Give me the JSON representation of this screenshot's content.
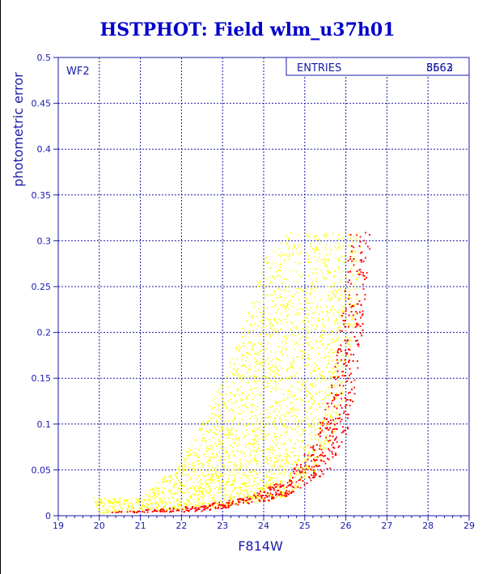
{
  "title": "HSTPHOT: Field wlm_u37h01",
  "colors": {
    "axis": "#1a1aa8",
    "grid": "#1a1aa8",
    "title": "#0000cc",
    "series_all": "#ffff00",
    "series_good": "#ff0000"
  },
  "chart_data": {
    "type": "scatter",
    "title": "HSTPHOT: Field wlm_u37h01",
    "xlabel": "F814W",
    "ylabel": "photometric error",
    "xlim": [
      19,
      29
    ],
    "ylim": [
      0,
      0.5
    ],
    "x_ticks": [
      "19",
      "20",
      "21",
      "22",
      "23",
      "24",
      "25",
      "26",
      "27",
      "28",
      "29"
    ],
    "y_ticks": [
      "0",
      "0.05",
      "0.1",
      "0.15",
      "0.2",
      "0.25",
      "0.3",
      "0.35",
      "0.4",
      "0.45",
      "0.5"
    ],
    "grid": true,
    "panel_label": "WF2",
    "stats_box": {
      "label": "ENTRIES",
      "values": [
        "8662",
        "5563"
      ]
    },
    "series": [
      {
        "color": "#ffff00",
        "envelope": [
          [
            19.8,
            0.02
          ],
          [
            21,
            0.02
          ],
          [
            22,
            0.06
          ],
          [
            23,
            0.15
          ],
          [
            24,
            0.28
          ],
          [
            24.5,
            0.31
          ],
          [
            26.4,
            0.31
          ],
          [
            26.2,
            0.21
          ],
          [
            25.8,
            0.1
          ],
          [
            25.3,
            0.05
          ],
          [
            24.5,
            0.02
          ],
          [
            23,
            0.01
          ],
          [
            20,
            0.003
          ]
        ]
      },
      {
        "color": "#ff0000",
        "envelope": [
          [
            20.1,
            0.004
          ],
          [
            22,
            0.01
          ],
          [
            23.5,
            0.02
          ],
          [
            24.5,
            0.04
          ],
          [
            25.2,
            0.08
          ],
          [
            25.6,
            0.14
          ],
          [
            25.9,
            0.22
          ],
          [
            26.1,
            0.31
          ],
          [
            26.6,
            0.31
          ],
          [
            26.4,
            0.2
          ],
          [
            26.1,
            0.1
          ],
          [
            25.6,
            0.05
          ],
          [
            24.5,
            0.02
          ],
          [
            22.5,
            0.005
          ]
        ]
      }
    ]
  }
}
